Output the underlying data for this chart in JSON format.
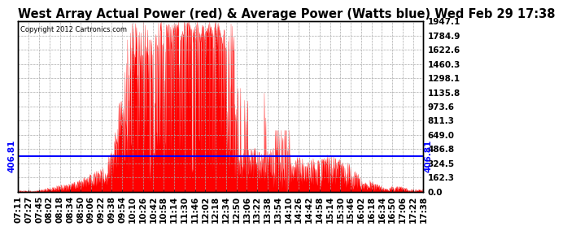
{
  "title": "West Array Actual Power (red) & Average Power (Watts blue) Wed Feb 29 17:38",
  "copyright": "Copyright 2012 Cartronics.com",
  "avg_power": 406.81,
  "y_max": 1947.1,
  "y_min": 0.0,
  "y_ticks": [
    0.0,
    162.3,
    324.5,
    486.8,
    649.0,
    811.3,
    973.6,
    1135.8,
    1298.1,
    1460.3,
    1622.6,
    1784.9,
    1947.1
  ],
  "x_tick_labels": [
    "07:11",
    "07:27",
    "07:45",
    "08:02",
    "08:18",
    "08:34",
    "08:50",
    "09:06",
    "09:22",
    "09:38",
    "09:54",
    "10:10",
    "10:26",
    "10:42",
    "10:58",
    "11:14",
    "11:30",
    "11:46",
    "12:02",
    "12:18",
    "12:34",
    "12:50",
    "13:06",
    "13:22",
    "13:38",
    "13:54",
    "14:10",
    "14:26",
    "14:42",
    "14:58",
    "15:14",
    "15:30",
    "15:46",
    "16:02",
    "16:18",
    "16:34",
    "16:50",
    "17:06",
    "17:22",
    "17:38"
  ],
  "bg_color": "#ffffff",
  "red_color": "#ff0000",
  "blue_color": "#0000ff",
  "grid_color": "#aaaaaa",
  "title_fontsize": 10.5,
  "label_fontsize": 7.5
}
